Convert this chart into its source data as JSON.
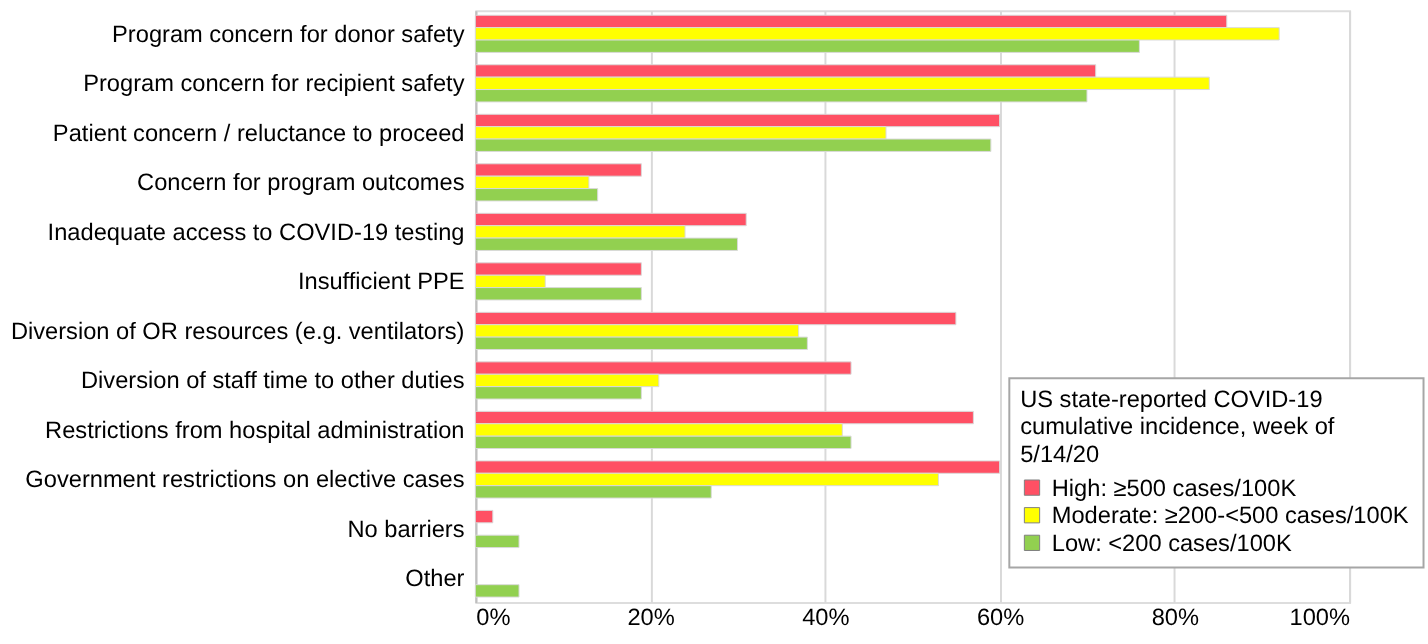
{
  "chart_data": {
    "type": "bar",
    "orientation": "horizontal",
    "categories": [
      "Program concern for donor safety",
      "Program concern for recipient safety",
      "Patient concern / reluctance to proceed",
      "Concern for program outcomes",
      "Inadequate access to COVID-19 testing",
      "Insufficient PPE",
      "Diversion of OR resources (e.g. ventilators)",
      "Diversion of staff time to other duties",
      "Restrictions from hospital administration",
      "Government restrictions on elective cases",
      "No barriers",
      "Other"
    ],
    "series": [
      {
        "name": "High: ≥500 cases/100K",
        "color": "#ff5064",
        "values": [
          86,
          71,
          60,
          19,
          31,
          19,
          55,
          43,
          57,
          60,
          2,
          null
        ]
      },
      {
        "name": "Moderate: ≥200-<500 cases/100K",
        "color": "#ffff00",
        "values": [
          92,
          84,
          47,
          13,
          24,
          8,
          37,
          21,
          42,
          53,
          null,
          null
        ]
      },
      {
        "name": "Low: <200 cases/100K",
        "color": "#92d050",
        "values": [
          76,
          70,
          59,
          14,
          30,
          19,
          38,
          19,
          43,
          27,
          5,
          5
        ]
      }
    ],
    "legend_title": "US state-reported COVID-19 cumulative incidence, week of 5/14/20",
    "legend": "bottom right",
    "xlim": [
      0,
      100
    ],
    "xticks": [
      {
        "value": 0,
        "label": "0%"
      },
      {
        "value": 20,
        "label": "20%"
      },
      {
        "value": 40,
        "label": "40%"
      },
      {
        "value": 60,
        "label": "60%"
      },
      {
        "value": 80,
        "label": "80%"
      },
      {
        "value": 100,
        "label": "100%"
      }
    ],
    "grid": "x"
  }
}
